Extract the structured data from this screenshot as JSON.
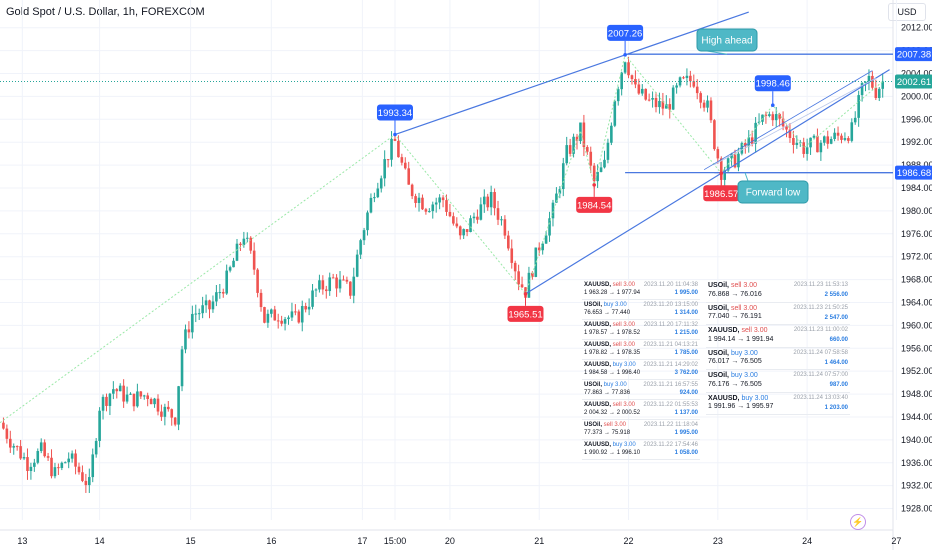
{
  "header": {
    "title": "Gold Spot / U.S. Dollar, 1h, FOREXCOM",
    "currency": "USD"
  },
  "chart_data": {
    "type": "candlestick",
    "title": "Gold Spot / U.S. Dollar, 1h, FOREXCOM",
    "y_ticks": [
      1928,
      1932,
      1936,
      1940,
      1944,
      1948,
      1952,
      1956,
      1960,
      1964,
      1968,
      1972,
      1976,
      1980,
      1984,
      1988,
      1992,
      1996,
      2000,
      2004,
      2008,
      2012
    ],
    "ylim": [
      1926,
      2013
    ],
    "x_ticks": [
      "13",
      "14",
      "15",
      "16",
      "17",
      "15:00",
      "20",
      "21",
      "22",
      "23",
      "24",
      "27"
    ],
    "x_tick_positions": [
      0.5,
      23,
      49.5,
      73,
      99.5,
      109,
      125,
      151,
      177,
      203,
      229,
      255
    ],
    "xlim": [
      -6,
      254
    ],
    "price_labels": [
      {
        "text": "2007.38",
        "value": 2007.38,
        "color": "#2962ff"
      },
      {
        "text": "2002.61",
        "value": 2002.61,
        "color": "#26a69a"
      },
      {
        "text": "1986.68",
        "value": 1986.68,
        "color": "#2962ff"
      }
    ],
    "horizontal_lines": [
      2007.38,
      1986.68
    ],
    "current_price_line": 2002.61,
    "pivot_labels": [
      {
        "text": "1993.34",
        "t": 109,
        "value": 1993.34,
        "type": "high"
      },
      {
        "text": "2007.26",
        "t": 176,
        "value": 2007.26,
        "type": "high"
      },
      {
        "text": "1998.46",
        "t": 219,
        "value": 1998.46,
        "type": "high"
      },
      {
        "text": "1984.54",
        "t": 167,
        "value": 1984.54,
        "type": "low"
      },
      {
        "text": "1986.57",
        "t": 204,
        "value": 1986.57,
        "type": "low"
      },
      {
        "text": "1965.51",
        "t": 147,
        "value": 1965.51,
        "type": "low"
      }
    ],
    "annotations": [
      {
        "text": "High ahead"
      },
      {
        "text": "Forward low"
      }
    ],
    "channel_upper": [
      [
        109,
        1993.34
      ],
      [
        176,
        2007.26
      ]
    ],
    "channel_lower": [
      [
        147,
        1965.51
      ],
      [
        204,
        1986.57
      ]
    ],
    "anchors": [
      {
        "t": -6,
        "p": 1943
      },
      {
        "t": -3,
        "p": 1940
      },
      {
        "t": 2,
        "p": 1936
      },
      {
        "t": 6,
        "p": 1938
      },
      {
        "t": 10,
        "p": 1934
      },
      {
        "t": 14,
        "p": 1937
      },
      {
        "t": 20,
        "p": 1932
      },
      {
        "t": 23,
        "p": 1946
      },
      {
        "t": 27,
        "p": 1949
      },
      {
        "t": 32,
        "p": 1947
      },
      {
        "t": 37,
        "p": 1948
      },
      {
        "t": 42,
        "p": 1945
      },
      {
        "t": 45,
        "p": 1944
      },
      {
        "t": 47,
        "p": 1956
      },
      {
        "t": 50,
        "p": 1962
      },
      {
        "t": 55,
        "p": 1963
      },
      {
        "t": 60,
        "p": 1968
      },
      {
        "t": 65,
        "p": 1976
      },
      {
        "t": 68,
        "p": 1970
      },
      {
        "t": 71,
        "p": 1961
      },
      {
        "t": 75,
        "p": 1962
      },
      {
        "t": 80,
        "p": 1961
      },
      {
        "t": 86,
        "p": 1966
      },
      {
        "t": 91,
        "p": 1968
      },
      {
        "t": 96,
        "p": 1966
      },
      {
        "t": 99,
        "p": 1975
      },
      {
        "t": 103,
        "p": 1984
      },
      {
        "t": 107,
        "p": 1990
      },
      {
        "t": 109,
        "p": 1992
      },
      {
        "t": 113,
        "p": 1984
      },
      {
        "t": 118,
        "p": 1981
      },
      {
        "t": 123,
        "p": 1982
      },
      {
        "t": 128,
        "p": 1975
      },
      {
        "t": 133,
        "p": 1980
      },
      {
        "t": 137,
        "p": 1982
      },
      {
        "t": 141,
        "p": 1977
      },
      {
        "t": 145,
        "p": 1968
      },
      {
        "t": 147,
        "p": 1966
      },
      {
        "t": 151,
        "p": 1974
      },
      {
        "t": 155,
        "p": 1980
      },
      {
        "t": 159,
        "p": 1990
      },
      {
        "t": 163,
        "p": 1994
      },
      {
        "t": 167,
        "p": 1985
      },
      {
        "t": 170,
        "p": 1988
      },
      {
        "t": 173,
        "p": 2000
      },
      {
        "t": 176,
        "p": 2007
      },
      {
        "t": 179,
        "p": 2001
      },
      {
        "t": 183,
        "p": 1999
      },
      {
        "t": 188,
        "p": 1998
      },
      {
        "t": 192,
        "p": 2002
      },
      {
        "t": 196,
        "p": 2003
      },
      {
        "t": 200,
        "p": 1998
      },
      {
        "t": 202,
        "p": 1992
      },
      {
        "t": 204,
        "p": 1987
      },
      {
        "t": 208,
        "p": 1989
      },
      {
        "t": 212,
        "p": 1992
      },
      {
        "t": 216,
        "p": 1996
      },
      {
        "t": 219,
        "p": 1997
      },
      {
        "t": 223,
        "p": 1994
      },
      {
        "t": 228,
        "p": 1991
      },
      {
        "t": 233,
        "p": 1992
      },
      {
        "t": 238,
        "p": 1993
      },
      {
        "t": 242,
        "p": 1994
      },
      {
        "t": 245,
        "p": 2001
      },
      {
        "t": 247,
        "p": 2003
      },
      {
        "t": 249,
        "p": 2001
      },
      {
        "t": 251,
        "p": 2002.61
      }
    ]
  },
  "trades_small": [
    {
      "sym": "XAUUSD,",
      "side": "sell",
      "size": "3.00",
      "prices": "1 963.28 → 1 977.94",
      "time": "2023.11.20 11:04:38",
      "pl": "1 995.00"
    },
    {
      "sym": "USOil,",
      "side": "buy",
      "size": "3.00",
      "prices": "76.653 → 77.440",
      "time": "2023.11.20 13:15:00",
      "pl": "1 314.00"
    },
    {
      "sym": "XAUUSD,",
      "side": "sell",
      "size": "3.00",
      "prices": "1 978.57 → 1 978.52",
      "time": "2023.11.20 17:11:32",
      "pl": "1 215.00"
    },
    {
      "sym": "XAUUSD,",
      "side": "sell",
      "size": "3.00",
      "prices": "1 978.82 → 1 978.35",
      "time": "2023.11.21 04:13:21",
      "pl": "1 785.00"
    },
    {
      "sym": "XAUUSD,",
      "side": "buy",
      "size": "3.00",
      "prices": "1 984.58 → 1 996.40",
      "time": "2023.11.21 14:29:02",
      "pl": "3 762.00"
    },
    {
      "sym": "USOil,",
      "side": "buy",
      "size": "3.00",
      "prices": "77.863 → 77.836",
      "time": "2023.11.21 16:57:55",
      "pl": "924.00"
    },
    {
      "sym": "XAUUSD,",
      "side": "sell",
      "size": "3.00",
      "prices": "2 004.32 → 2 000.52",
      "time": "2023.11.22 01:55:53",
      "pl": "1 137.00"
    },
    {
      "sym": "USOil,",
      "side": "sell",
      "size": "3.00",
      "prices": "77.373 → 75.918",
      "time": "2023.11.22 11:18:04",
      "pl": "1 995.00"
    },
    {
      "sym": "XAUUSD,",
      "side": "buy",
      "size": "3.00",
      "prices": "1 990.92 → 1 996.10",
      "time": "2023.11.22 17:54:46",
      "pl": "1 058.00"
    }
  ],
  "trades_large": [
    {
      "sym": "USOil,",
      "side": "sell",
      "size": "3.00",
      "prices": "76.868 → 76.016",
      "time": "2023.11.23 11:53:13",
      "pl": "2 556.00"
    },
    {
      "sym": "USOil,",
      "side": "sell",
      "size": "3.00",
      "prices": "77.040 → 76.191",
      "time": "2023.11.23 21:50:25",
      "pl": "2 547.00"
    },
    {
      "sym": "XAUUSD,",
      "side": "sell",
      "size": "3.00",
      "prices": "1 994.14 → 1 991.94",
      "time": "2023.11.23 11:00:02",
      "pl": "660.00"
    },
    {
      "sym": "USOil,",
      "side": "buy",
      "size": "3.00",
      "prices": "76.017 → 76.505",
      "time": "2023.11.24 07:58:58",
      "pl": "1 464.00"
    },
    {
      "sym": "USOil,",
      "side": "buy",
      "size": "3.00",
      "prices": "76.176 → 76.505",
      "time": "2023.11.24 07:57:00",
      "pl": "987.00"
    },
    {
      "sym": "XAUUSD,",
      "side": "buy",
      "size": "3.00",
      "prices": "1 991.96 → 1 995.97",
      "time": "2023.11.24 13:03:40",
      "pl": "1 203.00"
    }
  ],
  "colors": {
    "up": "#26a69a",
    "down": "#ef5350",
    "trendline": "#4a78e0",
    "pivot_high": "#2962ff",
    "pivot_low": "#f23645",
    "annotation": "#4fb8c6"
  }
}
